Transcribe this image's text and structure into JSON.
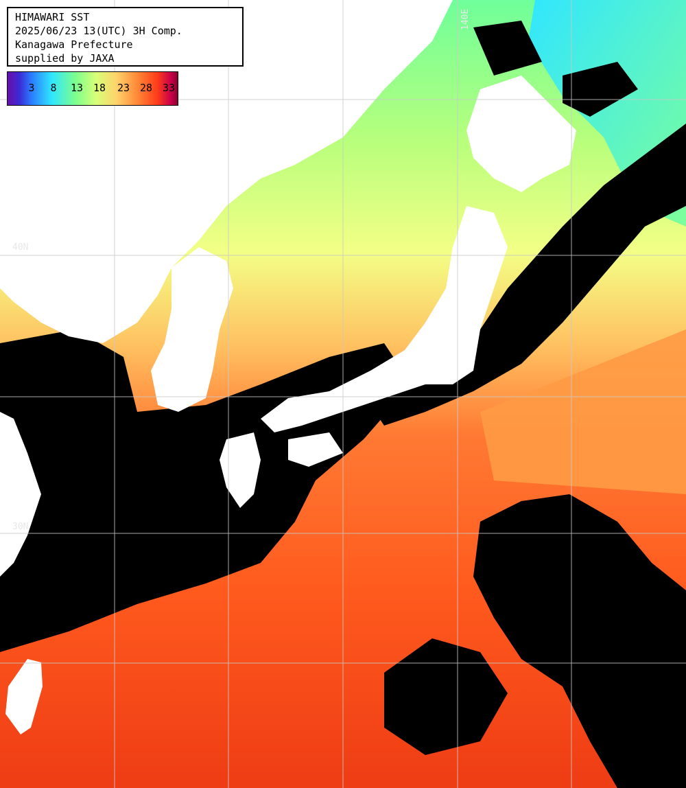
{
  "header": {
    "line1": "HIMAWARI SST",
    "line2": "2025/06/23 13(UTC) 3H Comp.",
    "line3": "Kanagawa Prefecture",
    "line4": "supplied by JAXA"
  },
  "colorbar": {
    "ticks": [
      "3",
      "8",
      "13",
      "18",
      "23",
      "28",
      "33"
    ]
  },
  "grid_labels": {
    "lon_140": "140E",
    "lat_40": "40N",
    "lat_30": "30N"
  },
  "colors": {
    "land": "#ffffff",
    "cloud": "#000000",
    "cool_water": "#38f0ff",
    "mid_water": "#a8ff7a",
    "warm_water": "#f2ff8a",
    "warmer_water": "#ffb050",
    "hot_water": "#ff5a1a",
    "hottest_water": "#f03c14",
    "gridline": "#c8c8c8"
  }
}
